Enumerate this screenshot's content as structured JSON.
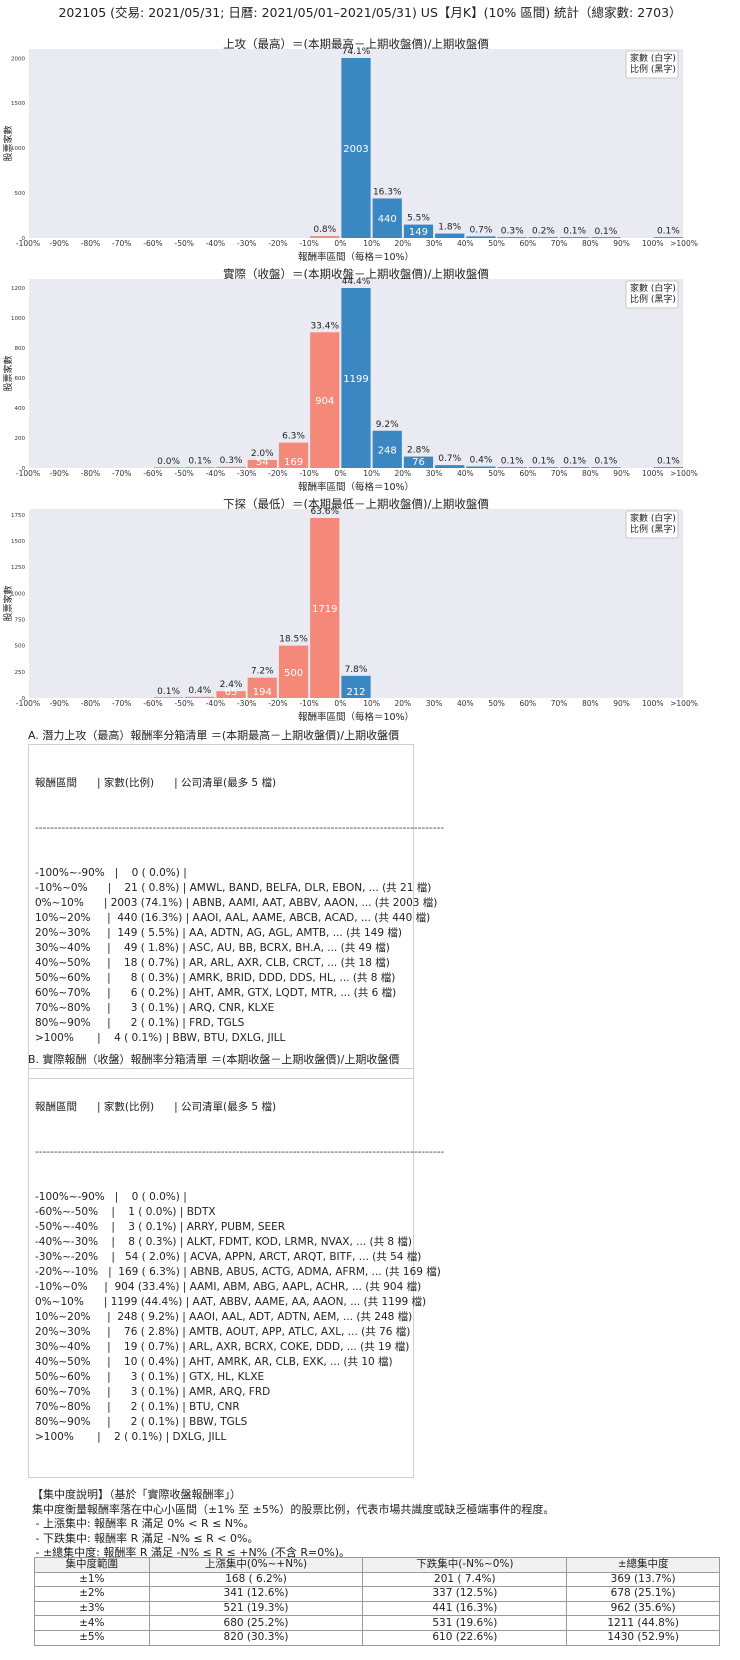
{
  "page_title": "202105 (交易: 2021/05/31; 日曆: 2021/05/01–2021/05/31) US【月K】(10% 區間) 統計（總家數: 2703）",
  "chart_data": [
    {
      "type": "bar",
      "title": "上攻（最高）＝(本期最高－上期收盤價)/上期收盤價",
      "xlabel": "報酬率區間（每格＝10%）",
      "ylabel": "股票家數",
      "legend": [
        "家數 (白字)",
        "比例 (黑字)"
      ],
      "legend_position": "top-right",
      "x_ticks": [
        "-100%",
        "-90%",
        "-80%",
        "-70%",
        "-60%",
        "-50%",
        "-40%",
        "-30%",
        "-20%",
        "-10%",
        "0%",
        "10%",
        "20%",
        "30%",
        "40%",
        "50%",
        "60%",
        "70%",
        "80%",
        "90%",
        "100%",
        ">100%"
      ],
      "y_ticks": [
        0,
        500,
        1000,
        1500,
        2000
      ],
      "ylim": [
        0,
        2103
      ],
      "bins": [
        {
          "range": "-100%~-90%",
          "count": 0
        },
        {
          "range": "-90%~-80%",
          "count": 0
        },
        {
          "range": "-80%~-70%",
          "count": 0
        },
        {
          "range": "-70%~-60%",
          "count": 0
        },
        {
          "range": "-60%~-50%",
          "count": 0
        },
        {
          "range": "-50%~-40%",
          "count": 0
        },
        {
          "range": "-40%~-30%",
          "count": 0
        },
        {
          "range": "-30%~-20%",
          "count": 0
        },
        {
          "range": "-20%~-10%",
          "count": 0
        },
        {
          "range": "-10%~0%",
          "count": 21,
          "pct": "0.8%"
        },
        {
          "range": "0%~10%",
          "count": 2003,
          "pct": "74.1%",
          "count_label": "2003"
        },
        {
          "range": "10%~20%",
          "count": 440,
          "pct": "16.3%",
          "count_label": "440"
        },
        {
          "range": "20%~30%",
          "count": 149,
          "pct": "5.5%",
          "count_label": "149"
        },
        {
          "range": "30%~40%",
          "count": 49,
          "pct": "1.8%"
        },
        {
          "range": "40%~50%",
          "count": 18,
          "pct": "0.7%"
        },
        {
          "range": "50%~60%",
          "count": 8,
          "pct": "0.3%"
        },
        {
          "range": "60%~70%",
          "count": 6,
          "pct": "0.2%"
        },
        {
          "range": "70%~80%",
          "count": 3,
          "pct": "0.1%"
        },
        {
          "range": "80%~90%",
          "count": 2,
          "pct": "0.1%"
        },
        {
          "range": "90%~100%",
          "count": 0
        },
        {
          "range": ">100%",
          "count": 4,
          "pct": "0.1%"
        }
      ]
    },
    {
      "type": "bar",
      "title": "實際（收盤）＝(本期收盤－上期收盤價)/上期收盤價",
      "xlabel": "報酬率區間（每格＝10%）",
      "ylabel": "股票家數",
      "legend": [
        "家數 (白字)",
        "比例 (黑字)"
      ],
      "legend_position": "top-right",
      "x_ticks": [
        "-100%",
        "-90%",
        "-80%",
        "-70%",
        "-60%",
        "-50%",
        "-40%",
        "-30%",
        "-20%",
        "-10%",
        "0%",
        "10%",
        "20%",
        "30%",
        "40%",
        "50%",
        "60%",
        "70%",
        "80%",
        "90%",
        "100%",
        ">100%"
      ],
      "y_ticks": [
        0,
        200,
        400,
        600,
        800,
        1000,
        1200
      ],
      "ylim": [
        0,
        1259
      ],
      "bins": [
        {
          "range": "-100%~-90%",
          "count": 0
        },
        {
          "range": "-90%~-80%",
          "count": 0
        },
        {
          "range": "-80%~-70%",
          "count": 0
        },
        {
          "range": "-70%~-60%",
          "count": 0
        },
        {
          "range": "-60%~-50%",
          "count": 1,
          "pct": "0.0%"
        },
        {
          "range": "-50%~-40%",
          "count": 3,
          "pct": "0.1%"
        },
        {
          "range": "-40%~-30%",
          "count": 8,
          "pct": "0.3%"
        },
        {
          "range": "-30%~-20%",
          "count": 54,
          "pct": "2.0%",
          "count_label": "54"
        },
        {
          "range": "-20%~-10%",
          "count": 169,
          "pct": "6.3%",
          "count_label": "169"
        },
        {
          "range": "-10%~0%",
          "count": 904,
          "pct": "33.4%",
          "count_label": "904"
        },
        {
          "range": "0%~10%",
          "count": 1199,
          "pct": "44.4%",
          "count_label": "1199"
        },
        {
          "range": "10%~20%",
          "count": 248,
          "pct": "9.2%",
          "count_label": "248"
        },
        {
          "range": "20%~30%",
          "count": 76,
          "pct": "2.8%",
          "count_label": "76"
        },
        {
          "range": "30%~40%",
          "count": 19,
          "pct": "0.7%"
        },
        {
          "range": "40%~50%",
          "count": 10,
          "pct": "0.4%"
        },
        {
          "range": "50%~60%",
          "count": 3,
          "pct": "0.1%"
        },
        {
          "range": "60%~70%",
          "count": 3,
          "pct": "0.1%"
        },
        {
          "range": "70%~80%",
          "count": 2,
          "pct": "0.1%"
        },
        {
          "range": "80%~90%",
          "count": 2,
          "pct": "0.1%"
        },
        {
          "range": "90%~100%",
          "count": 0
        },
        {
          "range": ">100%",
          "count": 2,
          "pct": "0.1%"
        }
      ]
    },
    {
      "type": "bar",
      "title": "下探（最低）＝(本期最低－上期收盤價)/上期收盤價",
      "xlabel": "報酬率區間（每格＝10%）",
      "ylabel": "股票家數",
      "legend": [
        "家數 (白字)",
        "比例 (黑字)"
      ],
      "legend_position": "top-right",
      "x_ticks": [
        "-100%",
        "-90%",
        "-80%",
        "-70%",
        "-60%",
        "-50%",
        "-40%",
        "-30%",
        "-20%",
        "-10%",
        "0%",
        "10%",
        "20%",
        "30%",
        "40%",
        "50%",
        "60%",
        "70%",
        "80%",
        "90%",
        "100%",
        ">100%"
      ],
      "y_ticks": [
        0,
        250,
        500,
        750,
        1000,
        1250,
        1500,
        1750
      ],
      "ylim": [
        0,
        1805
      ],
      "bins": [
        {
          "range": "-100%~-90%",
          "count": 0
        },
        {
          "range": "-90%~-80%",
          "count": 0
        },
        {
          "range": "-80%~-70%",
          "count": 0
        },
        {
          "range": "-70%~-60%",
          "count": 0
        },
        {
          "range": "-60%~-50%",
          "count": 2,
          "pct": "0.1%"
        },
        {
          "range": "-50%~-40%",
          "count": 11,
          "pct": "0.4%"
        },
        {
          "range": "-40%~-30%",
          "count": 65,
          "pct": "2.4%",
          "count_label": "65"
        },
        {
          "range": "-30%~-20%",
          "count": 194,
          "pct": "7.2%",
          "count_label": "194"
        },
        {
          "range": "-20%~-10%",
          "count": 500,
          "pct": "18.5%",
          "count_label": "500"
        },
        {
          "range": "-10%~0%",
          "count": 1719,
          "pct": "63.6%",
          "count_label": "1719"
        },
        {
          "range": "0%~10%",
          "count": 212,
          "pct": "7.8%",
          "count_label": "212"
        },
        {
          "range": "10%~20%",
          "count": 0
        },
        {
          "range": "20%~30%",
          "count": 0
        },
        {
          "range": "30%~40%",
          "count": 0
        },
        {
          "range": "40%~50%",
          "count": 0
        },
        {
          "range": "50%~60%",
          "count": 0
        },
        {
          "range": "60%~70%",
          "count": 0
        },
        {
          "range": "70%~80%",
          "count": 0
        },
        {
          "range": "80%~90%",
          "count": 0
        },
        {
          "range": "90%~100%",
          "count": 0
        },
        {
          "range": ">100%",
          "count": 0
        }
      ]
    }
  ],
  "colors": {
    "positive": "#3a87c1",
    "negative": "#f4897a",
    "plot_bg": "#eaeaf2"
  },
  "section_a": {
    "heading": "A. 潛力上攻（最高）報酬率分箱清單 ＝(本期最高－上期收盤價)/上期收盤價",
    "header": "報酬區間      | 家數(比例)      | 公司清單(最多 5 檔)",
    "separator": "------------------------------------------------------------------------------------------------------------",
    "rows": [
      "-100%~-90%   |    0 ( 0.0%) |",
      "-10%~0%      |    21 ( 0.8%) | AMWL, BAND, BELFA, DLR, EBON, ... (共 21 檔)",
      "0%~10%      | 2003 (74.1%) | ABNB, AAMI, AAT, ABBV, AAON, ... (共 2003 檔)",
      "10%~20%     |  440 (16.3%) | AAOI, AAL, AAME, ABCB, ACAD, ... (共 440 檔)",
      "20%~30%     |  149 ( 5.5%) | AA, ADTN, AG, AGL, AMTB, ... (共 149 檔)",
      "30%~40%     |    49 ( 1.8%) | ASC, AU, BB, BCRX, BH.A, ... (共 49 檔)",
      "40%~50%     |    18 ( 0.7%) | AR, ARL, AXR, CLB, CRCT, ... (共 18 檔)",
      "50%~60%     |      8 ( 0.3%) | AMRK, BRID, DDD, DDS, HL, ... (共 8 檔)",
      "60%~70%     |      6 ( 0.2%) | AHT, AMR, GTX, LQDT, MTR, ... (共 6 檔)",
      "70%~80%     |      3 ( 0.1%) | ARQ, CNR, KLXE",
      "80%~90%     |      2 ( 0.1%) | FRD, TGLS",
      ">100%       |    4 ( 0.1%) | BBW, BTU, DXLG, JILL"
    ]
  },
  "section_b": {
    "heading": "B. 實際報酬（收盤）報酬率分箱清單 ＝(本期收盤－上期收盤價)/上期收盤價",
    "header": "報酬區間      | 家數(比例)      | 公司清單(最多 5 檔)",
    "separator": "------------------------------------------------------------------------------------------------------------",
    "rows": [
      "-100%~-90%   |    0 ( 0.0%) |",
      "-60%~-50%    |    1 ( 0.0%) | BDTX",
      "-50%~-40%    |    3 ( 0.1%) | ARRY, PUBM, SEER",
      "-40%~-30%    |    8 ( 0.3%) | ALKT, FDMT, KOD, LRMR, NVAX, ... (共 8 檔)",
      "-30%~-20%    |   54 ( 2.0%) | ACVA, APPN, ARCT, ARQT, BITF, ... (共 54 檔)",
      "-20%~-10%   |  169 ( 6.3%) | ABNB, ABUS, ACTG, ADMA, AFRM, ... (共 169 檔)",
      "-10%~0%     |  904 (33.4%) | AAMI, ABM, ABG, AAPL, ACHR, ... (共 904 檔)",
      "0%~10%      | 1199 (44.4%) | AAT, ABBV, AAME, AA, AAON, ... (共 1199 檔)",
      "10%~20%     |  248 ( 9.2%) | AAOI, AAL, ADT, ADTN, AEM, ... (共 248 檔)",
      "20%~30%     |    76 ( 2.8%) | AMTB, AOUT, APP, ATLC, AXL, ... (共 76 檔)",
      "30%~40%     |    19 ( 0.7%) | ARL, AXR, BCRX, COKE, DDD, ... (共 19 檔)",
      "40%~50%     |    10 ( 0.4%) | AHT, AMRK, AR, CLB, EXK, ... (共 10 檔)",
      "50%~60%     |      3 ( 0.1%) | GTX, HL, KLXE",
      "60%~70%     |      3 ( 0.1%) | AMR, ARQ, FRD",
      "70%~80%     |      2 ( 0.1%) | BTU, CNR",
      "80%~90%     |      2 ( 0.1%) | BBW, TGLS",
      ">100%       |    2 ( 0.1%) | DXLG, JILL"
    ]
  },
  "concentration": {
    "heading": "【集中度說明】（基於「實際收盤報酬率」）",
    "lines": [
      "集中度衡量報酬率落在中心小區間（±1% 至 ±5%）的股票比例，代表市場共識度或缺乏極端事件的程度。",
      " - 上漲集中: 報酬率 R 滿足 0% < R ≤ N%。",
      " - 下跌集中: 報酬率 R 滿足 -N% ≤ R < 0%。",
      " - ±總集中度: 報酬率 R 滿足 -N% ≤ R ≤ +N% (不含 R=0%)。"
    ],
    "table_headers": [
      "集中度範圍",
      "上漲集中(0%~+N%)",
      "下跌集中(-N%~0%)",
      "±總集中度"
    ],
    "table_rows": [
      [
        "±1%",
        "168 ( 6.2%)",
        "201 ( 7.4%)",
        "369 (13.7%)"
      ],
      [
        "±2%",
        "341 (12.6%)",
        "337 (12.5%)",
        "678 (25.1%)"
      ],
      [
        "±3%",
        "521 (19.3%)",
        "441 (16.3%)",
        "962 (35.6%)"
      ],
      [
        "±4%",
        "680 (25.2%)",
        "531 (19.6%)",
        "1211 (44.8%)"
      ],
      [
        "±5%",
        "820 (30.3%)",
        "610 (22.6%)",
        "1430 (52.9%)"
      ]
    ]
  }
}
